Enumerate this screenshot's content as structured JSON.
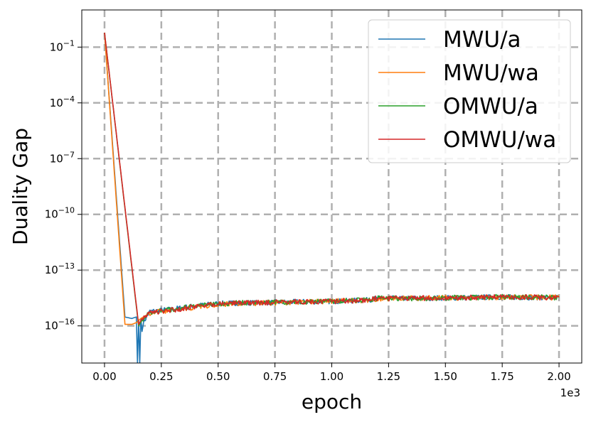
{
  "chart_data": {
    "type": "line",
    "title": "",
    "xlabel": "epoch",
    "ylabel": "Duality Gap",
    "x_offset_label": "1e3",
    "xlim": [
      -0.1,
      2.1
    ],
    "x_ticks": [
      0.0,
      0.25,
      0.5,
      0.75,
      1.0,
      1.25,
      1.5,
      1.75,
      2.0
    ],
    "x_tick_labels": [
      "0.00",
      "0.25",
      "0.50",
      "0.75",
      "1.00",
      "1.25",
      "1.50",
      "1.75",
      "2.00"
    ],
    "y_scale": "log",
    "ylim": [
      1e-18,
      10.0
    ],
    "y_ticks": [
      1e-16,
      1e-13,
      1e-10,
      1e-07,
      0.0001,
      0.1
    ],
    "y_tick_labels": [
      {
        "base": "10",
        "exp": "−16"
      },
      {
        "base": "10",
        "exp": "−13"
      },
      {
        "base": "10",
        "exp": "−10"
      },
      {
        "base": "10",
        "exp": "−7"
      },
      {
        "base": "10",
        "exp": "−4"
      },
      {
        "base": "10",
        "exp": "−1"
      }
    ],
    "grid": true,
    "legend_position": "top-right",
    "series": [
      {
        "name": "MWU/a",
        "color": "#1f77b4",
        "points": [
          [
            0.0,
            0.6
          ],
          [
            0.09,
            3e-16
          ],
          [
            0.12,
            2.5e-16
          ],
          [
            0.14,
            3e-16
          ],
          [
            0.145,
            1e-18
          ],
          [
            0.15,
            2e-16
          ],
          [
            0.155,
            1e-18
          ],
          [
            0.16,
            2.5e-16
          ],
          [
            0.165,
            5e-17
          ],
          [
            0.17,
            1.5e-16
          ],
          [
            0.2,
            6e-16
          ],
          [
            0.3,
            8e-16
          ],
          [
            0.4,
            1.2e-15
          ],
          [
            0.5,
            1.6e-15
          ],
          [
            0.6,
            1.7e-15
          ],
          [
            0.7,
            1.8e-15
          ],
          [
            0.8,
            1.9e-15
          ],
          [
            0.9,
            2e-15
          ],
          [
            1.0,
            2.1e-15
          ],
          [
            1.1,
            2.3e-15
          ],
          [
            1.15,
            2.4e-15
          ],
          [
            1.2,
            3e-15
          ],
          [
            1.3,
            3e-15
          ],
          [
            1.4,
            3.1e-15
          ],
          [
            1.5,
            3.2e-15
          ],
          [
            1.6,
            3.3e-15
          ],
          [
            1.7,
            3.5e-15
          ],
          [
            1.75,
            3.6e-15
          ],
          [
            1.8,
            3.5e-15
          ],
          [
            1.9,
            3.4e-15
          ],
          [
            2.0,
            3.5e-15
          ]
        ]
      },
      {
        "name": "MWU/wa",
        "color": "#ff7f0e",
        "points": [
          [
            0.0,
            0.6
          ],
          [
            0.09,
            1.2e-16
          ],
          [
            0.12,
            1.2e-16
          ],
          [
            0.14,
            1.5e-16
          ],
          [
            0.16,
            2.5e-16
          ],
          [
            0.2,
            5e-16
          ],
          [
            0.3,
            7e-16
          ],
          [
            0.4,
            1e-15
          ],
          [
            0.5,
            1.5e-15
          ],
          [
            0.6,
            1.6e-15
          ],
          [
            0.7,
            1.7e-15
          ],
          [
            0.8,
            1.8e-15
          ],
          [
            0.9,
            2e-15
          ],
          [
            1.0,
            2.1e-15
          ],
          [
            1.1,
            2.2e-15
          ],
          [
            1.15,
            2.4e-15
          ],
          [
            1.2,
            2.9e-15
          ],
          [
            1.3,
            3e-15
          ],
          [
            1.4,
            3.1e-15
          ],
          [
            1.5,
            3.2e-15
          ],
          [
            1.6,
            3.3e-15
          ],
          [
            1.7,
            3.4e-15
          ],
          [
            1.75,
            3.6e-15
          ],
          [
            1.8,
            3.5e-15
          ],
          [
            1.9,
            3.4e-15
          ],
          [
            2.0,
            3.4e-15
          ]
        ]
      },
      {
        "name": "OMWU/a",
        "color": "#2ca02c",
        "points": [
          [
            0.0,
            0.6
          ],
          [
            0.15,
            1e-16
          ],
          [
            0.17,
            2.5e-16
          ],
          [
            0.2,
            5e-16
          ],
          [
            0.3,
            8e-16
          ],
          [
            0.4,
            1.1e-15
          ],
          [
            0.5,
            1.6e-15
          ],
          [
            0.6,
            1.7e-15
          ],
          [
            0.7,
            1.8e-15
          ],
          [
            0.8,
            1.9e-15
          ],
          [
            0.9,
            2e-15
          ],
          [
            1.0,
            2.1e-15
          ],
          [
            1.1,
            2.3e-15
          ],
          [
            1.15,
            2.4e-15
          ],
          [
            1.2,
            3e-15
          ],
          [
            1.3,
            3e-15
          ],
          [
            1.4,
            3.1e-15
          ],
          [
            1.5,
            3.2e-15
          ],
          [
            1.6,
            3.3e-15
          ],
          [
            1.7,
            3.5e-15
          ],
          [
            1.75,
            3.6e-15
          ],
          [
            1.8,
            3.5e-15
          ],
          [
            1.9,
            3.4e-15
          ],
          [
            2.0,
            3.4e-15
          ]
        ]
      },
      {
        "name": "OMWU/wa",
        "color": "#d62728",
        "points": [
          [
            0.0,
            0.6
          ],
          [
            0.15,
            1.2e-16
          ],
          [
            0.17,
            3e-16
          ],
          [
            0.2,
            5e-16
          ],
          [
            0.3,
            7e-16
          ],
          [
            0.4,
            1.1e-15
          ],
          [
            0.5,
            1.6e-15
          ],
          [
            0.6,
            1.7e-15
          ],
          [
            0.7,
            1.8e-15
          ],
          [
            0.8,
            1.9e-15
          ],
          [
            0.9,
            2e-15
          ],
          [
            1.0,
            2.1e-15
          ],
          [
            1.1,
            2.3e-15
          ],
          [
            1.15,
            2.5e-15
          ],
          [
            1.2,
            3e-15
          ],
          [
            1.3,
            3e-15
          ],
          [
            1.4,
            3.1e-15
          ],
          [
            1.5,
            3.2e-15
          ],
          [
            1.6,
            3.3e-15
          ],
          [
            1.7,
            3.5e-15
          ],
          [
            1.75,
            3.6e-15
          ],
          [
            1.8,
            3.5e-15
          ],
          [
            1.9,
            3.4e-15
          ],
          [
            2.0,
            3.5e-15
          ]
        ]
      }
    ]
  }
}
